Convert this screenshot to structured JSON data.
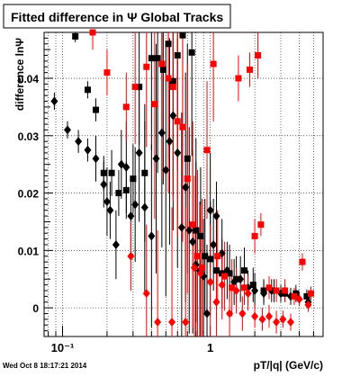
{
  "title": "Fitted difference in  Ψ   Global Tracks",
  "ylabel": "difference lnΨ",
  "xlabel": "pT/|q| (GeV/c)",
  "timestamp": "Wed Oct  8 18:17:21 2014",
  "colors": {
    "black_series": "#000000",
    "red_series": "#ff0000",
    "grid": "#000000"
  },
  "chart_data": {
    "type": "scatter",
    "title": "Fitted difference in  Ψ   Global Tracks",
    "xlabel": "pT/|q| (GeV/c)",
    "ylabel": "difference lnΨ",
    "x_scale": "log",
    "xlim": [
      0.075,
      5.8
    ],
    "ylim": [
      -0.005,
      0.048
    ],
    "grid": true,
    "x_ticks": [
      {
        "value": 0.1,
        "label": "10⁻¹"
      },
      {
        "value": 1,
        "label": "1"
      }
    ],
    "y_ticks": [
      {
        "value": 0,
        "label": "0"
      },
      {
        "value": 0.01,
        "label": "0.01"
      },
      {
        "value": 0.02,
        "label": "0.02"
      },
      {
        "value": 0.03,
        "label": "0.03"
      },
      {
        "value": 0.04,
        "label": "0.04"
      }
    ],
    "series": [
      {
        "marker": "diamond",
        "color": "#000000",
        "points": [
          {
            "x": 0.088,
            "y": 0.036,
            "e": 0.0015
          },
          {
            "x": 0.108,
            "y": 0.031,
            "e": 0.0015
          },
          {
            "x": 0.128,
            "y": 0.029,
            "e": 0.002
          },
          {
            "x": 0.148,
            "y": 0.0275,
            "e": 0.002
          },
          {
            "x": 0.168,
            "y": 0.026,
            "e": 0.004
          },
          {
            "x": 0.19,
            "y": 0.0215,
            "e": 0.004
          },
          {
            "x": 0.2,
            "y": 0.0185,
            "e": 0.006
          },
          {
            "x": 0.21,
            "y": 0.017,
            "e": 0.005
          },
          {
            "x": 0.23,
            "y": 0.011,
            "e": 0.006
          },
          {
            "x": 0.25,
            "y": 0.025,
            "e": 0.006
          },
          {
            "x": 0.27,
            "y": 0.0245,
            "e": 0.008
          },
          {
            "x": 0.29,
            "y": 0.016,
            "e": 0.007
          },
          {
            "x": 0.31,
            "y": 0.018,
            "e": 0.01
          },
          {
            "x": 0.33,
            "y": 0.027,
            "e": 0.012
          },
          {
            "x": 0.36,
            "y": 0.0175,
            "e": 0.015
          },
          {
            "x": 0.4,
            "y": 0.0125,
            "e": 0.016
          },
          {
            "x": 0.43,
            "y": 0.026,
            "e": 0.02
          },
          {
            "x": 0.47,
            "y": 0.0305,
            "e": 0.02
          },
          {
            "x": 0.5,
            "y": 0.024,
            "e": 0.022
          },
          {
            "x": 0.53,
            "y": 0.029,
            "e": 0.018
          },
          {
            "x": 0.56,
            "y": 0.0335,
            "e": 0.02
          },
          {
            "x": 0.6,
            "y": 0.027,
            "e": 0.02
          },
          {
            "x": 0.64,
            "y": 0.014,
            "e": 0.02
          },
          {
            "x": 0.68,
            "y": 0.021,
            "e": 0.02
          },
          {
            "x": 0.72,
            "y": 0.0135,
            "e": 0.018
          },
          {
            "x": 0.76,
            "y": 0.0115,
            "e": 0.016
          },
          {
            "x": 0.8,
            "y": 0.0075,
            "e": 0.018
          },
          {
            "x": 0.85,
            "y": 0.0065,
            "e": 0.012
          },
          {
            "x": 0.9,
            "y": 0.0055,
            "e": 0.01
          },
          {
            "x": 0.95,
            "y": -0.001,
            "e": 0.012
          },
          {
            "x": 1.0,
            "y": 0.017,
            "e": 0.01
          },
          {
            "x": 1.05,
            "y": 0.011,
            "e": 0.008
          },
          {
            "x": 1.1,
            "y": 0.016,
            "e": 0.006
          },
          {
            "x": 1.2,
            "y": 0.0095,
            "e": 0.006
          },
          {
            "x": 1.3,
            "y": 0.0065,
            "e": 0.005
          },
          {
            "x": 1.45,
            "y": 0.0045,
            "e": 0.004
          },
          {
            "x": 1.6,
            "y": 0.005,
            "e": 0.004
          },
          {
            "x": 1.8,
            "y": 0.0035,
            "e": 0.003
          },
          {
            "x": 2.0,
            "y": 0.003,
            "e": 0.003
          },
          {
            "x": 2.3,
            "y": 0.0025,
            "e": 0.002
          },
          {
            "x": 2.6,
            "y": 0.003,
            "e": 0.002
          },
          {
            "x": 3.0,
            "y": 0.0025,
            "e": 0.0015
          },
          {
            "x": 3.5,
            "y": 0.002,
            "e": 0.0015
          },
          {
            "x": 4.0,
            "y": 0.0015,
            "e": 0.0012
          },
          {
            "x": 4.6,
            "y": 0.001,
            "e": 0.0012
          }
        ]
      },
      {
        "marker": "square",
        "color": "#000000",
        "points": [
          {
            "x": 0.122,
            "y": 0.0473,
            "e": 0.001
          },
          {
            "x": 0.148,
            "y": 0.038,
            "e": 0.0015
          },
          {
            "x": 0.168,
            "y": 0.0345,
            "e": 0.002
          },
          {
            "x": 0.19,
            "y": 0.0235,
            "e": 0.003
          },
          {
            "x": 0.215,
            "y": 0.0235,
            "e": 0.004
          },
          {
            "x": 0.24,
            "y": 0.02,
            "e": 0.004
          },
          {
            "x": 0.27,
            "y": 0.0205,
            "e": 0.005
          },
          {
            "x": 0.3,
            "y": 0.0225,
            "e": 0.006
          },
          {
            "x": 0.33,
            "y": 0.0385,
            "e": 0.01
          },
          {
            "x": 0.36,
            "y": 0.0235,
            "e": 0.012
          },
          {
            "x": 0.4,
            "y": 0.0435,
            "e": 0.016
          },
          {
            "x": 0.44,
            "y": 0.0435,
            "e": 0.02
          },
          {
            "x": 0.48,
            "y": 0.0415,
            "e": 0.02
          },
          {
            "x": 0.52,
            "y": 0.046,
            "e": 0.02
          },
          {
            "x": 0.56,
            "y": 0.0395,
            "e": 0.02
          },
          {
            "x": 0.6,
            "y": 0.044,
            "e": 0.02
          },
          {
            "x": 0.65,
            "y": 0.0475,
            "e": 0.02
          },
          {
            "x": 0.7,
            "y": 0.026,
            "e": 0.02
          },
          {
            "x": 0.75,
            "y": 0.0445,
            "e": 0.018
          },
          {
            "x": 0.8,
            "y": 0.0135,
            "e": 0.016
          },
          {
            "x": 0.86,
            "y": 0.0125,
            "e": 0.012
          },
          {
            "x": 0.92,
            "y": 0.009,
            "e": 0.01
          },
          {
            "x": 1.0,
            "y": 0.0085,
            "e": 0.01
          },
          {
            "x": 1.1,
            "y": 0.0065,
            "e": 0.008
          },
          {
            "x": 1.2,
            "y": 0.006,
            "e": 0.006
          },
          {
            "x": 1.35,
            "y": 0.006,
            "e": 0.005
          },
          {
            "x": 1.5,
            "y": 0.005,
            "e": 0.004
          },
          {
            "x": 1.7,
            "y": 0.0065,
            "e": 0.004
          },
          {
            "x": 1.95,
            "y": 0.004,
            "e": 0.003
          },
          {
            "x": 2.3,
            "y": 0.003,
            "e": 0.002
          },
          {
            "x": 2.7,
            "y": 0.003,
            "e": 0.002
          },
          {
            "x": 3.2,
            "y": 0.0025,
            "e": 0.0015
          },
          {
            "x": 3.8,
            "y": 0.0025,
            "e": 0.0015
          },
          {
            "x": 4.5,
            "y": 0.002,
            "e": 0.0012
          }
        ]
      },
      {
        "marker": "square",
        "color": "#ff0000",
        "points": [
          {
            "x": 0.16,
            "y": 0.048,
            "e": 0.003
          },
          {
            "x": 0.2,
            "y": 0.041,
            "e": 0.004
          },
          {
            "x": 0.27,
            "y": 0.035,
            "e": 0.006
          },
          {
            "x": 0.31,
            "y": 0.0385,
            "e": 0.01
          },
          {
            "x": 0.37,
            "y": 0.042,
            "e": 0.014
          },
          {
            "x": 0.42,
            "y": 0.0355,
            "e": 0.02
          },
          {
            "x": 0.47,
            "y": 0.0425,
            "e": 0.02
          },
          {
            "x": 0.52,
            "y": 0.04,
            "e": 0.02
          },
          {
            "x": 0.56,
            "y": 0.0385,
            "e": 0.02
          },
          {
            "x": 0.6,
            "y": 0.0325,
            "e": 0.02
          },
          {
            "x": 0.65,
            "y": 0.0315,
            "e": 0.02
          },
          {
            "x": 0.7,
            "y": 0.0225,
            "e": 0.02
          },
          {
            "x": 0.76,
            "y": 0.0145,
            "e": 0.018
          },
          {
            "x": 0.82,
            "y": 0.009,
            "e": 0.015
          },
          {
            "x": 0.88,
            "y": 0.007,
            "e": 0.012
          },
          {
            "x": 0.95,
            "y": 0.0275,
            "e": 0.012
          },
          {
            "x": 1.05,
            "y": 0.0425,
            "e": 0.01
          },
          {
            "x": 1.12,
            "y": 0.009,
            "e": 0.008
          },
          {
            "x": 1.25,
            "y": 0.0055,
            "e": 0.006
          },
          {
            "x": 1.4,
            "y": 0.0035,
            "e": 0.005
          },
          {
            "x": 1.55,
            "y": 0.04,
            "e": 0.004
          },
          {
            "x": 1.7,
            "y": 0.0035,
            "e": 0.003
          },
          {
            "x": 1.85,
            "y": 0.0415,
            "e": 0.003
          },
          {
            "x": 2.0,
            "y": 0.0125,
            "e": 0.003
          },
          {
            "x": 2.2,
            "y": 0.0145,
            "e": 0.002
          },
          {
            "x": 2.5,
            "y": 0.0035,
            "e": 0.002
          },
          {
            "x": 2.8,
            "y": 0.003,
            "e": 0.002
          },
          {
            "x": 3.2,
            "y": 0.003,
            "e": 0.002
          },
          {
            "x": 3.7,
            "y": 0.002,
            "e": 0.0015
          },
          {
            "x": 4.2,
            "y": 0.008,
            "e": 0.0015
          },
          {
            "x": 4.8,
            "y": 0.0025,
            "e": 0.0012
          },
          {
            "x": 2.1,
            "y": 0.044,
            "e": 0.004
          }
        ]
      },
      {
        "marker": "diamond",
        "color": "#ff0000",
        "points": [
          {
            "x": 0.29,
            "y": 0.009,
            "e": 0.006
          },
          {
            "x": 0.37,
            "y": 0.0025,
            "e": 0.012
          },
          {
            "x": 0.44,
            "y": -0.0025,
            "e": 0.016
          },
          {
            "x": 0.55,
            "y": -0.0025,
            "e": 0.02
          },
          {
            "x": 0.68,
            "y": -0.0025,
            "e": 0.02
          },
          {
            "x": 0.78,
            "y": 0.007,
            "e": 0.016
          },
          {
            "x": 0.86,
            "y": 0.006,
            "e": 0.012
          },
          {
            "x": 1.0,
            "y": 0.0045,
            "e": 0.01
          },
          {
            "x": 1.1,
            "y": 0.001,
            "e": 0.008
          },
          {
            "x": 1.2,
            "y": 0.004,
            "e": 0.006
          },
          {
            "x": 1.35,
            "y": -0.001,
            "e": 0.005
          },
          {
            "x": 1.5,
            "y": 0.003,
            "e": 0.004
          },
          {
            "x": 1.65,
            "y": -0.001,
            "e": 0.003
          },
          {
            "x": 1.8,
            "y": 0.0025,
            "e": 0.003
          },
          {
            "x": 2.0,
            "y": -0.0015,
            "e": 0.002
          },
          {
            "x": 2.25,
            "y": -0.002,
            "e": 0.002
          },
          {
            "x": 2.5,
            "y": -0.0015,
            "e": 0.002
          },
          {
            "x": 2.8,
            "y": -0.0025,
            "e": 0.002
          },
          {
            "x": 3.1,
            "y": -0.002,
            "e": 0.0015
          },
          {
            "x": 3.5,
            "y": -0.0025,
            "e": 0.0015
          },
          {
            "x": 4.0,
            "y": 0.0015,
            "e": 0.0012
          },
          {
            "x": 4.6,
            "y": 0.0005,
            "e": 0.0012
          }
        ]
      }
    ]
  }
}
